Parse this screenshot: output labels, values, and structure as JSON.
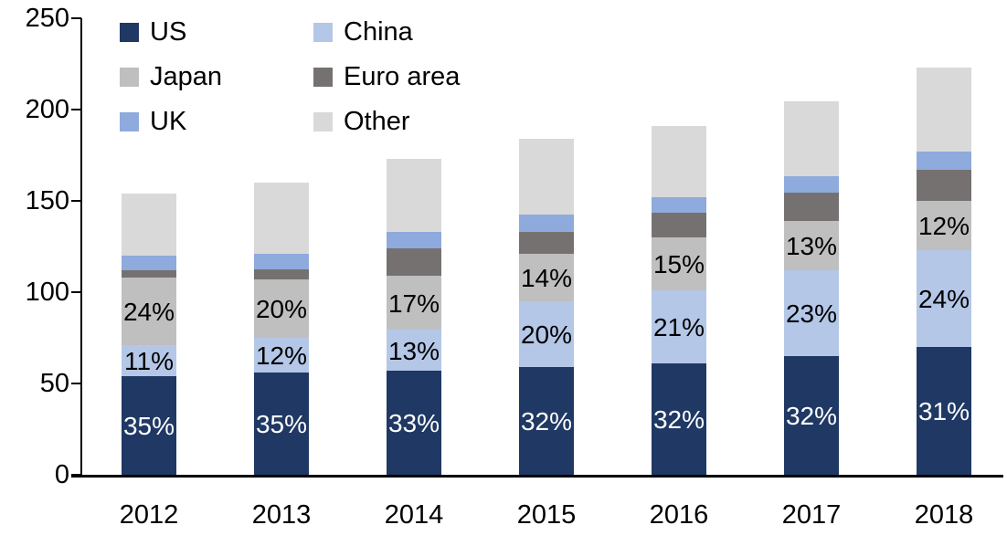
{
  "chart_data": {
    "type": "bar",
    "stacked": true,
    "title": "",
    "xlabel": "",
    "ylabel": "",
    "categories": [
      "2012",
      "2013",
      "2014",
      "2015",
      "2016",
      "2017",
      "2018"
    ],
    "series": [
      {
        "name": "US",
        "color": "#1F3864",
        "values": [
          54,
          56,
          57,
          59,
          61,
          65,
          70
        ],
        "labels": [
          "35%",
          "35%",
          "33%",
          "32%",
          "32%",
          "32%",
          "31%"
        ],
        "label_color": "#FFFFFF"
      },
      {
        "name": "China",
        "color": "#B4C7E7",
        "values": [
          17,
          19,
          22.5,
          36,
          40,
          47,
          53
        ],
        "labels": [
          "11%",
          "12%",
          "13%",
          "20%",
          "21%",
          "23%",
          "24%"
        ],
        "label_color": "#000000"
      },
      {
        "name": "Japan",
        "color": "#BFBFBF",
        "values": [
          37,
          32,
          29.5,
          26,
          29,
          27,
          27
        ],
        "labels": [
          "24%",
          "20%",
          "17%",
          "14%",
          "15%",
          "13%",
          "12%"
        ],
        "label_color": "#000000"
      },
      {
        "name": "Euro area",
        "color": "#767171",
        "values": [
          4,
          5.5,
          15,
          12,
          13.5,
          15.5,
          17
        ]
      },
      {
        "name": "UK",
        "color": "#8FAADC",
        "values": [
          8,
          8.5,
          9,
          9.5,
          8.5,
          9,
          10
        ]
      },
      {
        "name": "Other",
        "color": "#D9D9D9",
        "values": [
          34,
          39,
          40,
          41.5,
          39,
          41,
          46
        ]
      }
    ],
    "totals": [
      154,
      160,
      173,
      184,
      191,
      204.5,
      223
    ],
    "ylim": [
      0,
      250
    ],
    "yticks": [
      0,
      50,
      100,
      150,
      200,
      250
    ],
    "grid": false,
    "legend_position": "top-left",
    "legend_order": [
      "US",
      "China",
      "Japan",
      "Euro area",
      "UK",
      "Other"
    ]
  }
}
